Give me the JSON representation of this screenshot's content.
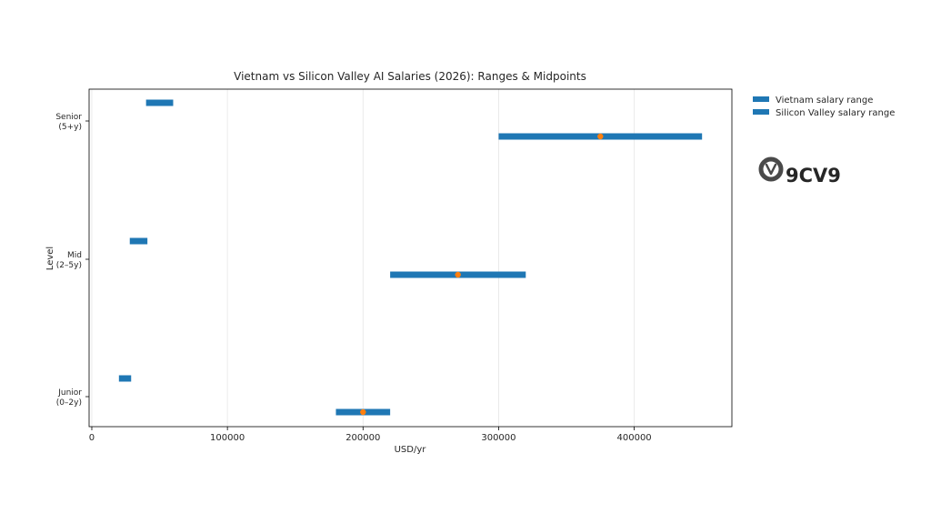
{
  "chart_data": {
    "type": "bar",
    "orientation": "horizontal-range",
    "title": "Vietnam vs Silicon Valley AI Salaries (2026): Ranges & Midpoints",
    "xlabel": "USD/yr",
    "ylabel": "Level",
    "xlim": [
      -2000,
      472000
    ],
    "xticks": [
      0,
      100000,
      200000,
      300000,
      400000
    ],
    "xtick_labels": [
      "0",
      "100000",
      "200000",
      "300000",
      "400000"
    ],
    "grid": "vertical",
    "legend_position": "right-outside",
    "categories": [
      {
        "line1": "Junior",
        "line2": "(0–2y)"
      },
      {
        "line1": "Mid",
        "line2": "(2–5y)"
      },
      {
        "line1": "Senior",
        "line2": "(5+y)"
      }
    ],
    "series": [
      {
        "name": "Vietnam salary range",
        "color": "#1f77b4",
        "ranges": [
          [
            20000,
            29000
          ],
          [
            28000,
            41000
          ],
          [
            40000,
            60000
          ]
        ]
      },
      {
        "name": "Silicon Valley salary range",
        "color": "#1f77b4",
        "ranges": [
          [
            180000,
            220000
          ],
          [
            220000,
            320000
          ],
          [
            300000,
            450000
          ]
        ],
        "midpoints": [
          200000,
          270000,
          375000
        ],
        "midpoint_color": "#ff7f0e"
      }
    ]
  },
  "logo": {
    "text": "9CV9",
    "color": "#4a4a4a"
  }
}
